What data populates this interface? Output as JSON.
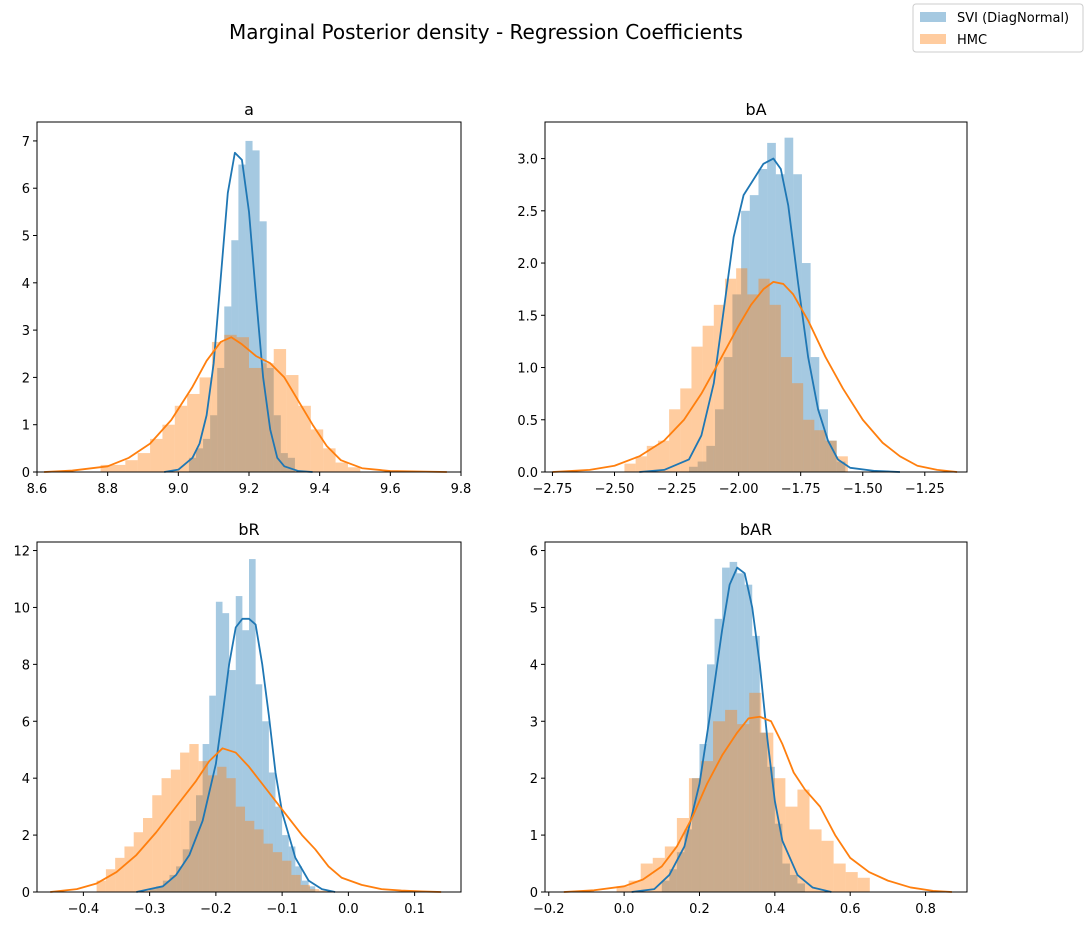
{
  "figure": {
    "title": "Marginal Posterior density - Regression Coefficients",
    "legend": [
      {
        "label": "SVI (DiagNormal)",
        "color": "#1f77b4"
      },
      {
        "label": "HMC",
        "color": "#ff7f0e"
      }
    ],
    "legend_position": "top-right"
  },
  "chart_data": [
    {
      "type": "bar",
      "title": "a",
      "xlim": [
        8.6,
        9.8
      ],
      "ylim": [
        0,
        7.4
      ],
      "xticks": [
        8.6,
        8.8,
        9.0,
        9.2,
        9.4,
        9.6,
        9.8
      ],
      "xtick_labels": [
        "8.6",
        "8.8",
        "9.0",
        "9.2",
        "9.4",
        "9.6",
        "9.8"
      ],
      "yticks": [
        0,
        1,
        2,
        3,
        4,
        5,
        6,
        7
      ],
      "ytick_labels": [
        "0",
        "1",
        "2",
        "3",
        "4",
        "5",
        "6",
        "7"
      ],
      "series": [
        {
          "name": "SVI (DiagNormal)",
          "color": "#1f77b4",
          "hist": {
            "start": 9.03,
            "width": 0.02,
            "values": [
              0.3,
              0.5,
              0.7,
              1.2,
              2.2,
              3.5,
              4.9,
              6.5,
              7.0,
              6.8,
              5.3,
              2.2,
              1.2,
              0.4,
              0.3
            ]
          },
          "kde_x": [
            8.96,
            9.0,
            9.04,
            9.06,
            9.08,
            9.1,
            9.12,
            9.14,
            9.16,
            9.18,
            9.2,
            9.22,
            9.24,
            9.26,
            9.28,
            9.3,
            9.34,
            9.38
          ],
          "kde_y": [
            0,
            0.05,
            0.3,
            0.6,
            1.2,
            2.3,
            4.1,
            5.9,
            6.75,
            6.6,
            5.5,
            3.7,
            2.0,
            0.9,
            0.3,
            0.12,
            0.02,
            0
          ]
        },
        {
          "name": "HMC",
          "color": "#ff7f0e",
          "hist": {
            "start": 8.78,
            "width": 0.035,
            "values": [
              0.15,
              0.15,
              0.25,
              0.4,
              0.7,
              1.0,
              1.4,
              1.65,
              2.0,
              2.75,
              2.9,
              2.85,
              2.2,
              2.3,
              2.6,
              2.05,
              1.4,
              0.9,
              0.5,
              0.2,
              0.1
            ]
          },
          "kde_x": [
            8.62,
            8.7,
            8.8,
            8.86,
            8.92,
            8.98,
            9.04,
            9.08,
            9.12,
            9.15,
            9.18,
            9.22,
            9.26,
            9.3,
            9.34,
            9.38,
            9.42,
            9.46,
            9.52,
            9.6,
            9.68,
            9.76
          ],
          "kde_y": [
            0,
            0.03,
            0.12,
            0.3,
            0.6,
            1.1,
            1.8,
            2.35,
            2.75,
            2.85,
            2.7,
            2.45,
            2.3,
            2.0,
            1.5,
            1.0,
            0.55,
            0.25,
            0.08,
            0.02,
            0.01,
            0
          ]
        }
      ]
    },
    {
      "type": "bar",
      "title": "bA",
      "xlim": [
        -2.78,
        -1.08
      ],
      "ylim": [
        0,
        3.35
      ],
      "xticks": [
        -2.75,
        -2.5,
        -2.25,
        -2.0,
        -1.75,
        -1.5,
        -1.25
      ],
      "xtick_labels": [
        "−2.75",
        "−2.50",
        "−2.25",
        "−2.00",
        "−1.75",
        "−1.50",
        "−1.25"
      ],
      "yticks": [
        0,
        0.5,
        1.0,
        1.5,
        2.0,
        2.5,
        3.0
      ],
      "ytick_labels": [
        "0.0",
        "0.5",
        "1.0",
        "1.5",
        "2.0",
        "2.5",
        "3.0"
      ],
      "series": [
        {
          "name": "SVI (DiagNormal)",
          "color": "#1f77b4",
          "hist": {
            "start": -2.2,
            "width": 0.035,
            "values": [
              0.05,
              0.1,
              0.25,
              0.6,
              1.1,
              1.7,
              2.5,
              2.65,
              2.9,
              3.15,
              2.85,
              3.2,
              2.85,
              2.0,
              1.1,
              0.6,
              0.3,
              0.1
            ]
          },
          "kde_x": [
            -2.4,
            -2.3,
            -2.2,
            -2.15,
            -2.1,
            -2.06,
            -2.02,
            -1.98,
            -1.94,
            -1.9,
            -1.86,
            -1.83,
            -1.8,
            -1.76,
            -1.72,
            -1.68,
            -1.64,
            -1.6,
            -1.55,
            -1.45,
            -1.35
          ],
          "kde_y": [
            0,
            0.02,
            0.12,
            0.35,
            0.85,
            1.55,
            2.25,
            2.65,
            2.8,
            2.95,
            3.0,
            2.9,
            2.55,
            1.8,
            1.1,
            0.6,
            0.3,
            0.12,
            0.04,
            0.01,
            0
          ]
        },
        {
          "name": "HMC",
          "color": "#ff7f0e",
          "hist": {
            "start": -2.46,
            "width": 0.045,
            "values": [
              0.08,
              0.15,
              0.25,
              0.3,
              0.6,
              0.8,
              1.2,
              1.4,
              1.6,
              1.85,
              1.95,
              1.7,
              1.85,
              1.6,
              1.1,
              0.85,
              0.5,
              0.4,
              0.3,
              0.15
            ]
          },
          "kde_x": [
            -2.75,
            -2.6,
            -2.5,
            -2.4,
            -2.3,
            -2.22,
            -2.15,
            -2.08,
            -2.0,
            -1.95,
            -1.9,
            -1.86,
            -1.82,
            -1.78,
            -1.72,
            -1.65,
            -1.58,
            -1.5,
            -1.42,
            -1.35,
            -1.28,
            -1.2,
            -1.12
          ],
          "kde_y": [
            0,
            0.02,
            0.06,
            0.15,
            0.3,
            0.5,
            0.75,
            1.05,
            1.4,
            1.6,
            1.75,
            1.82,
            1.8,
            1.7,
            1.45,
            1.1,
            0.8,
            0.5,
            0.28,
            0.15,
            0.06,
            0.02,
            0
          ]
        }
      ]
    },
    {
      "type": "bar",
      "title": "bR",
      "xlim": [
        -0.47,
        0.17
      ],
      "ylim": [
        0,
        12.3
      ],
      "xticks": [
        -0.4,
        -0.3,
        -0.2,
        -0.1,
        0.0,
        0.1
      ],
      "xtick_labels": [
        "−0.4",
        "−0.3",
        "−0.2",
        "−0.1",
        "0.0",
        "0.1"
      ],
      "yticks": [
        0,
        2,
        4,
        6,
        8,
        10,
        12
      ],
      "ytick_labels": [
        "0",
        "2",
        "4",
        "6",
        "8",
        "10",
        "12"
      ],
      "series": [
        {
          "name": "SVI (DiagNormal)",
          "color": "#1f77b4",
          "hist": {
            "start": -0.3,
            "width": 0.01,
            "values": [
              0.1,
              0.2,
              0.4,
              0.6,
              0.9,
              1.5,
              2.5,
              3.4,
              5.2,
              6.9,
              10.2,
              9.8,
              7.8,
              10.4,
              9.2,
              11.7,
              7.3,
              6.0,
              4.2,
              3.0,
              2.0,
              1.6,
              0.9,
              0.4,
              0.2
            ]
          },
          "kde_x": [
            -0.32,
            -0.28,
            -0.26,
            -0.24,
            -0.22,
            -0.2,
            -0.19,
            -0.18,
            -0.17,
            -0.16,
            -0.15,
            -0.14,
            -0.13,
            -0.12,
            -0.11,
            -0.1,
            -0.08,
            -0.06,
            -0.04,
            -0.02
          ],
          "kde_y": [
            0,
            0.2,
            0.6,
            1.3,
            2.5,
            4.5,
            6.2,
            8.0,
            9.3,
            9.6,
            9.6,
            9.4,
            8.0,
            6.2,
            4.2,
            2.8,
            1.2,
            0.4,
            0.1,
            0
          ]
        },
        {
          "name": "HMC",
          "color": "#ff7f0e",
          "hist": {
            "start": -0.38,
            "width": 0.014,
            "values": [
              0.4,
              0.8,
              1.2,
              1.6,
              2.1,
              2.6,
              3.4,
              4.0,
              4.3,
              4.9,
              5.2,
              4.6,
              4.1,
              4.4,
              4.0,
              3.0,
              2.5,
              2.2,
              1.7,
              1.4,
              1.1,
              0.6,
              0.25,
              0.1,
              0.05
            ]
          },
          "kde_x": [
            -0.45,
            -0.41,
            -0.38,
            -0.35,
            -0.32,
            -0.29,
            -0.26,
            -0.23,
            -0.21,
            -0.19,
            -0.17,
            -0.15,
            -0.13,
            -0.11,
            -0.09,
            -0.07,
            -0.05,
            -0.03,
            -0.01,
            0.02,
            0.05,
            0.08,
            0.11,
            0.14
          ],
          "kde_y": [
            0,
            0.1,
            0.3,
            0.7,
            1.3,
            2.1,
            3.0,
            3.9,
            4.6,
            5.05,
            4.9,
            4.4,
            3.8,
            3.2,
            2.6,
            2.0,
            1.5,
            0.9,
            0.5,
            0.25,
            0.1,
            0.05,
            0.02,
            0
          ]
        }
      ]
    },
    {
      "type": "bar",
      "title": "bAR",
      "xlim": [
        -0.21,
        0.91
      ],
      "ylim": [
        0,
        6.15
      ],
      "xticks": [
        -0.2,
        0.0,
        0.2,
        0.4,
        0.6,
        0.8
      ],
      "xtick_labels": [
        "−0.2",
        "0.0",
        "0.2",
        "0.4",
        "0.6",
        "0.8"
      ],
      "yticks": [
        0,
        1,
        2,
        3,
        4,
        5,
        6
      ],
      "ytick_labels": [
        "0",
        "1",
        "2",
        "3",
        "4",
        "5",
        "6"
      ],
      "series": [
        {
          "name": "SVI (DiagNormal)",
          "color": "#1f77b4",
          "hist": {
            "start": 0.1,
            "width": 0.02,
            "values": [
              0.2,
              0.4,
              0.7,
              1.1,
              2.0,
              2.6,
              4.0,
              4.8,
              5.7,
              5.8,
              5.6,
              5.4,
              4.5,
              2.8,
              2.2,
              1.2,
              0.5,
              0.3,
              0.15
            ]
          },
          "kde_x": [
            0.02,
            0.08,
            0.12,
            0.16,
            0.2,
            0.23,
            0.26,
            0.28,
            0.3,
            0.32,
            0.34,
            0.36,
            0.38,
            0.4,
            0.42,
            0.46,
            0.5,
            0.55
          ],
          "kde_y": [
            0,
            0.05,
            0.3,
            0.8,
            1.9,
            3.2,
            4.6,
            5.4,
            5.7,
            5.6,
            5.0,
            4.0,
            2.7,
            1.6,
            0.9,
            0.3,
            0.08,
            0
          ]
        },
        {
          "name": "HMC",
          "color": "#ff7f0e",
          "hist": {
            "start": -0.02,
            "width": 0.032,
            "values": [
              0.1,
              0.2,
              0.5,
              0.6,
              0.8,
              1.3,
              2.0,
              2.3,
              3.0,
              3.2,
              2.95,
              3.5,
              2.8,
              2.0,
              1.5,
              1.8,
              1.1,
              0.9,
              0.5,
              0.35,
              0.25
            ]
          },
          "kde_x": [
            -0.16,
            -0.08,
            0.0,
            0.05,
            0.1,
            0.14,
            0.18,
            0.22,
            0.26,
            0.3,
            0.33,
            0.36,
            0.39,
            0.42,
            0.45,
            0.48,
            0.52,
            0.56,
            0.6,
            0.65,
            0.7,
            0.76,
            0.82,
            0.87
          ],
          "kde_y": [
            0,
            0.03,
            0.1,
            0.22,
            0.45,
            0.8,
            1.3,
            1.9,
            2.4,
            2.8,
            3.05,
            3.08,
            3.0,
            2.6,
            2.1,
            1.8,
            1.5,
            1.0,
            0.6,
            0.35,
            0.2,
            0.08,
            0.02,
            0
          ]
        }
      ]
    }
  ]
}
